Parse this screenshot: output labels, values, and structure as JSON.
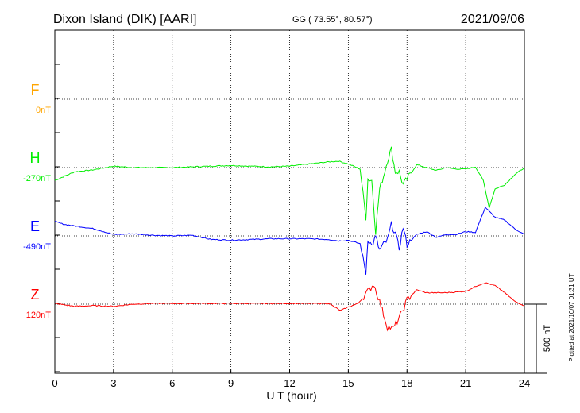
{
  "header": {
    "station": "Dixon Island (DIK)  [AARI]",
    "coords": "GG ( 73.55°,  80.57°)",
    "date": "2021/09/06"
  },
  "side_note": "Plotted at 2021/10/07 01:31  UT",
  "chart_data": {
    "type": "line",
    "xlabel": "U T (hour)",
    "x_ticks": [
      "0",
      "3",
      "6",
      "9",
      "12",
      "15",
      "18",
      "21",
      "24"
    ],
    "xlim": [
      0,
      24
    ],
    "scale_bar_label": "500 nT",
    "scale_bar_nT": 500,
    "series": [
      {
        "name": "F",
        "baseline_label": "0nT",
        "color": "#ffa500",
        "values": []
      },
      {
        "name": "H",
        "baseline_label": "-270nT",
        "color": "#00ee00",
        "values": [
          [
            0,
            -90
          ],
          [
            0.5,
            -60
          ],
          [
            1,
            -30
          ],
          [
            2,
            -15
          ],
          [
            3,
            10
          ],
          [
            4,
            0
          ],
          [
            5,
            0
          ],
          [
            6,
            0
          ],
          [
            7,
            5
          ],
          [
            8,
            10
          ],
          [
            9,
            15
          ],
          [
            10,
            10
          ],
          [
            11,
            5
          ],
          [
            12,
            10
          ],
          [
            13,
            25
          ],
          [
            14,
            40
          ],
          [
            14.5,
            45
          ],
          [
            15,
            25
          ],
          [
            15.6,
            -10
          ],
          [
            15.9,
            -350
          ],
          [
            16,
            -80
          ],
          [
            16.2,
            -90
          ],
          [
            16.4,
            -450
          ],
          [
            16.6,
            -150
          ],
          [
            16.8,
            -60
          ],
          [
            17,
            50
          ],
          [
            17.2,
            130
          ],
          [
            17.4,
            -30
          ],
          [
            17.6,
            -30
          ],
          [
            17.8,
            -120
          ],
          [
            18,
            -80
          ],
          [
            18.5,
            20
          ],
          [
            19,
            0
          ],
          [
            19.5,
            -20
          ],
          [
            20,
            0
          ],
          [
            20.5,
            -10
          ],
          [
            21,
            -10
          ],
          [
            21.5,
            5
          ],
          [
            21.9,
            -90
          ],
          [
            22.2,
            -280
          ],
          [
            22.5,
            -150
          ],
          [
            23,
            -120
          ],
          [
            23.5,
            -50
          ],
          [
            24,
            0
          ]
        ]
      },
      {
        "name": "E",
        "baseline_label": "-490nT",
        "color": "#0000ff",
        "values": [
          [
            0,
            100
          ],
          [
            0.5,
            80
          ],
          [
            1,
            70
          ],
          [
            2,
            50
          ],
          [
            3,
            10
          ],
          [
            4,
            15
          ],
          [
            5,
            5
          ],
          [
            6,
            0
          ],
          [
            7,
            5
          ],
          [
            8,
            -25
          ],
          [
            9,
            -30
          ],
          [
            10,
            -25
          ],
          [
            11,
            -20
          ],
          [
            12,
            -20
          ],
          [
            13,
            -20
          ],
          [
            14,
            -25
          ],
          [
            14.5,
            -35
          ],
          [
            15,
            -30
          ],
          [
            15.6,
            -55
          ],
          [
            15.9,
            -260
          ],
          [
            16,
            -20
          ],
          [
            16.2,
            -70
          ],
          [
            16.4,
            -10
          ],
          [
            16.6,
            -100
          ],
          [
            16.8,
            -60
          ],
          [
            17,
            -30
          ],
          [
            17.2,
            80
          ],
          [
            17.4,
            20
          ],
          [
            17.6,
            -90
          ],
          [
            17.8,
            60
          ],
          [
            18,
            -60
          ],
          [
            18.5,
            10
          ],
          [
            19,
            30
          ],
          [
            19.5,
            -10
          ],
          [
            20,
            10
          ],
          [
            20.5,
            10
          ],
          [
            21,
            30
          ],
          [
            21.5,
            25
          ],
          [
            22,
            200
          ],
          [
            22.5,
            130
          ],
          [
            23,
            110
          ],
          [
            23.5,
            50
          ],
          [
            24,
            10
          ]
        ]
      },
      {
        "name": "Z",
        "baseline_label": "120nT",
        "color": "#ff0000",
        "values": [
          [
            0,
            5
          ],
          [
            1,
            -15
          ],
          [
            2,
            -10
          ],
          [
            3,
            -15
          ],
          [
            4,
            0
          ],
          [
            5,
            5
          ],
          [
            6,
            5
          ],
          [
            7,
            5
          ],
          [
            8,
            5
          ],
          [
            9,
            5
          ],
          [
            10,
            5
          ],
          [
            11,
            5
          ],
          [
            12,
            5
          ],
          [
            13,
            5
          ],
          [
            14,
            5
          ],
          [
            14.6,
            -45
          ],
          [
            15,
            -20
          ],
          [
            15.5,
            5
          ],
          [
            16,
            90
          ],
          [
            16.3,
            140
          ],
          [
            16.6,
            20
          ],
          [
            17,
            -160
          ],
          [
            17.3,
            -170
          ],
          [
            17.7,
            -70
          ],
          [
            18,
            30
          ],
          [
            18.5,
            100
          ],
          [
            19,
            80
          ],
          [
            20,
            80
          ],
          [
            21,
            90
          ],
          [
            21.6,
            130
          ],
          [
            22,
            150
          ],
          [
            22.5,
            130
          ],
          [
            23,
            80
          ],
          [
            23.5,
            20
          ],
          [
            24,
            -10
          ]
        ]
      }
    ]
  }
}
